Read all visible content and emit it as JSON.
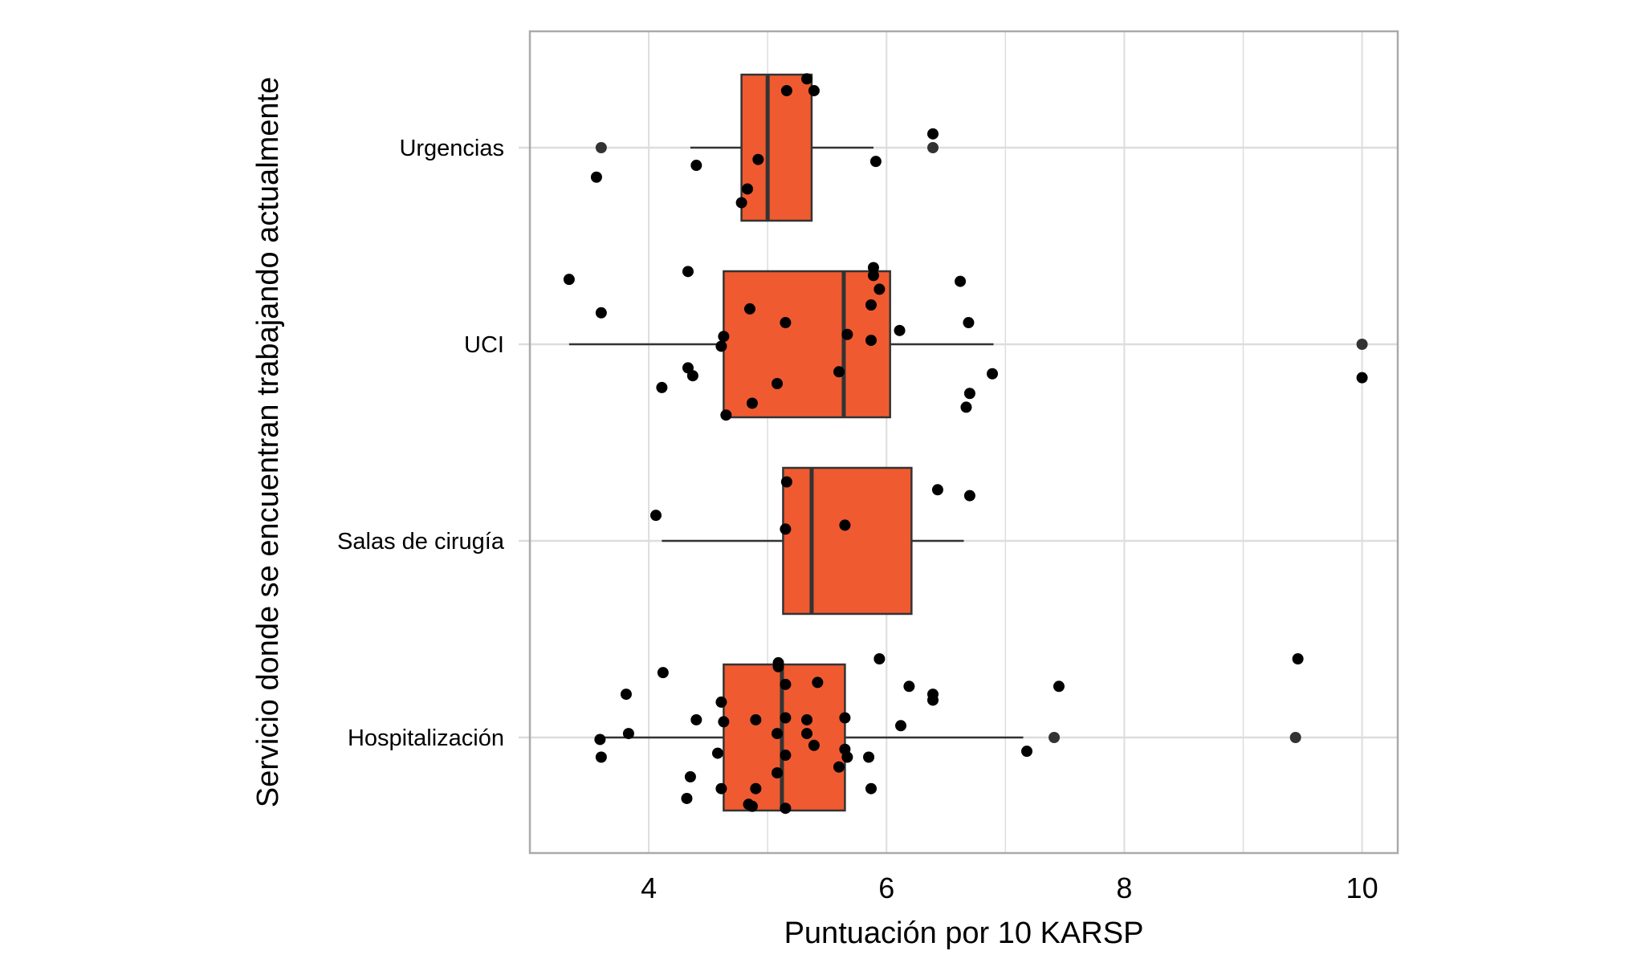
{
  "chart_data": {
    "type": "boxplot",
    "orientation": "horizontal",
    "xlabel": "Puntuación por 10 KARSP",
    "ylabel": "Servicio donde se encuentran trabajando actualmente",
    "xlim": [
      3,
      10.3
    ],
    "xticks": [
      4,
      6,
      8,
      10
    ],
    "grid": true,
    "colors": {
      "box_fill": "#F05A30",
      "box_line": "#333333",
      "point": "#000000",
      "outlier": "#333333",
      "grid": "#DDDDDD",
      "panel_border": "#AAAAAA"
    },
    "categories": [
      "Urgencias",
      "UCI",
      "Salas de cirugía",
      "Hospitalización"
    ],
    "boxes": [
      {
        "category": "Urgencias",
        "whisker_low": 4.35,
        "q1": 4.78,
        "median": 5.0,
        "q3": 5.37,
        "whisker_high": 5.89,
        "outliers": [
          3.6,
          6.39
        ]
      },
      {
        "category": "UCI",
        "whisker_low": 3.33,
        "q1": 4.63,
        "median": 5.64,
        "q3": 6.03,
        "whisker_high": 6.9,
        "outliers": [
          10
        ]
      },
      {
        "category": "Salas de cirugía",
        "whisker_low": 4.11,
        "q1": 5.13,
        "median": 5.37,
        "q3": 6.21,
        "whisker_high": 6.65,
        "outliers": []
      },
      {
        "category": "Hospitalización",
        "whisker_low": 3.59,
        "q1": 4.63,
        "median": 5.12,
        "q3": 5.65,
        "whisker_high": 7.15,
        "outliers": [
          7.41,
          9.44
        ]
      }
    ],
    "jitter_points": [
      {
        "category": "Urgencias",
        "points": [
          [
            5.33,
            0.35
          ],
          [
            5.16,
            0.29
          ],
          [
            5.39,
            0.29
          ],
          [
            6.39,
            0.07
          ],
          [
            4.4,
            -0.09
          ],
          [
            4.92,
            -0.06
          ],
          [
            5.91,
            -0.07
          ],
          [
            3.56,
            -0.15
          ],
          [
            4.83,
            -0.21
          ],
          [
            4.78,
            -0.28
          ]
        ]
      },
      {
        "category": "UCI",
        "points": [
          [
            3.33,
            0.33
          ],
          [
            4.33,
            0.37
          ],
          [
            5.89,
            0.39
          ],
          [
            5.89,
            0.35
          ],
          [
            5.94,
            0.28
          ],
          [
            6.62,
            0.32
          ],
          [
            3.6,
            0.16
          ],
          [
            4.85,
            0.18
          ],
          [
            5.15,
            0.11
          ],
          [
            5.87,
            0.2
          ],
          [
            6.69,
            0.11
          ],
          [
            6.11,
            0.07
          ],
          [
            4.63,
            0.04
          ],
          [
            5.67,
            0.05
          ],
          [
            4.61,
            -0.01
          ],
          [
            5.87,
            0.02
          ],
          [
            4.33,
            -0.12
          ],
          [
            4.37,
            -0.16
          ],
          [
            5.6,
            -0.14
          ],
          [
            6.89,
            -0.15
          ],
          [
            10,
            -0.17
          ],
          [
            4.11,
            -0.22
          ],
          [
            5.08,
            -0.2
          ],
          [
            6.7,
            -0.25
          ],
          [
            4.87,
            -0.3
          ],
          [
            6.67,
            -0.32
          ],
          [
            4.65,
            -0.36
          ]
        ]
      },
      {
        "category": "Salas de cirugía",
        "points": [
          [
            5.16,
            0.3
          ],
          [
            6.43,
            0.26
          ],
          [
            6.7,
            0.23
          ],
          [
            4.06,
            0.13
          ],
          [
            5.15,
            0.06
          ],
          [
            5.65,
            0.08
          ]
        ]
      },
      {
        "category": "Hospitalización",
        "points": [
          [
            5.09,
            0.38
          ],
          [
            5.09,
            0.36
          ],
          [
            5.94,
            0.4
          ],
          [
            9.46,
            0.4
          ],
          [
            4.12,
            0.33
          ],
          [
            5.15,
            0.27
          ],
          [
            5.42,
            0.28
          ],
          [
            6.19,
            0.26
          ],
          [
            3.81,
            0.22
          ],
          [
            6.39,
            0.22
          ],
          [
            6.39,
            0.19
          ],
          [
            7.45,
            0.26
          ],
          [
            4.61,
            0.18
          ],
          [
            4.4,
            0.09
          ],
          [
            4.63,
            0.08
          ],
          [
            4.9,
            0.09
          ],
          [
            5.15,
            0.1
          ],
          [
            5.33,
            0.09
          ],
          [
            5.65,
            0.1
          ],
          [
            6.12,
            0.06
          ],
          [
            3.59,
            -0.01
          ],
          [
            3.83,
            0.02
          ],
          [
            5.08,
            0.02
          ],
          [
            5.33,
            0.02
          ],
          [
            5.39,
            -0.04
          ],
          [
            5.65,
            -0.06
          ],
          [
            4.58,
            -0.08
          ],
          [
            3.6,
            -0.1
          ],
          [
            5.15,
            -0.09
          ],
          [
            5.67,
            -0.1
          ],
          [
            5.85,
            -0.1
          ],
          [
            7.18,
            -0.07
          ],
          [
            5.6,
            -0.15
          ],
          [
            5.08,
            -0.18
          ],
          [
            4.35,
            -0.2
          ],
          [
            4.61,
            -0.26
          ],
          [
            4.9,
            -0.26
          ],
          [
            5.87,
            -0.26
          ],
          [
            4.32,
            -0.31
          ],
          [
            4.84,
            -0.34
          ],
          [
            4.87,
            -0.35
          ],
          [
            5.15,
            -0.36
          ]
        ]
      }
    ]
  }
}
